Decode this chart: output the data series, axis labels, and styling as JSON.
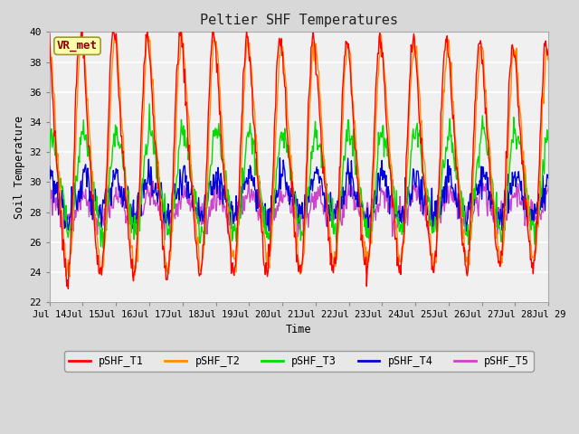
{
  "title": "Peltier SHF Temperatures",
  "xlabel": "Time",
  "ylabel": "Soil Temperature",
  "ylim": [
    22,
    40
  ],
  "yticks": [
    22,
    24,
    26,
    28,
    30,
    32,
    34,
    36,
    38,
    40
  ],
  "xtick_labels": [
    "Jul 14",
    "Jul 15",
    "Jul 16",
    "Jul 17",
    "Jul 18",
    "Jul 19",
    "Jul 20",
    "Jul 21",
    "Jul 22",
    "Jul 23",
    "Jul 24",
    "Jul 25",
    "Jul 26",
    "Jul 27",
    "Jul 28",
    "Jul 29"
  ],
  "series": {
    "pSHF_T1": {
      "color": "#ff0000",
      "lw": 1.0
    },
    "pSHF_T2": {
      "color": "#ff8c00",
      "lw": 1.0
    },
    "pSHF_T3": {
      "color": "#00dd00",
      "lw": 1.0
    },
    "pSHF_T4": {
      "color": "#0000dd",
      "lw": 1.0
    },
    "pSHF_T5": {
      "color": "#cc44cc",
      "lw": 1.0
    }
  },
  "annotation_text": "VR_met",
  "annotation_color": "#880000",
  "annotation_bg": "#ffffaa",
  "annotation_border": "#999933",
  "background_color": "#d8d8d8",
  "plot_bg": "#f0f0f0",
  "grid_color": "#ffffff",
  "font_family": "DejaVu Sans Mono"
}
